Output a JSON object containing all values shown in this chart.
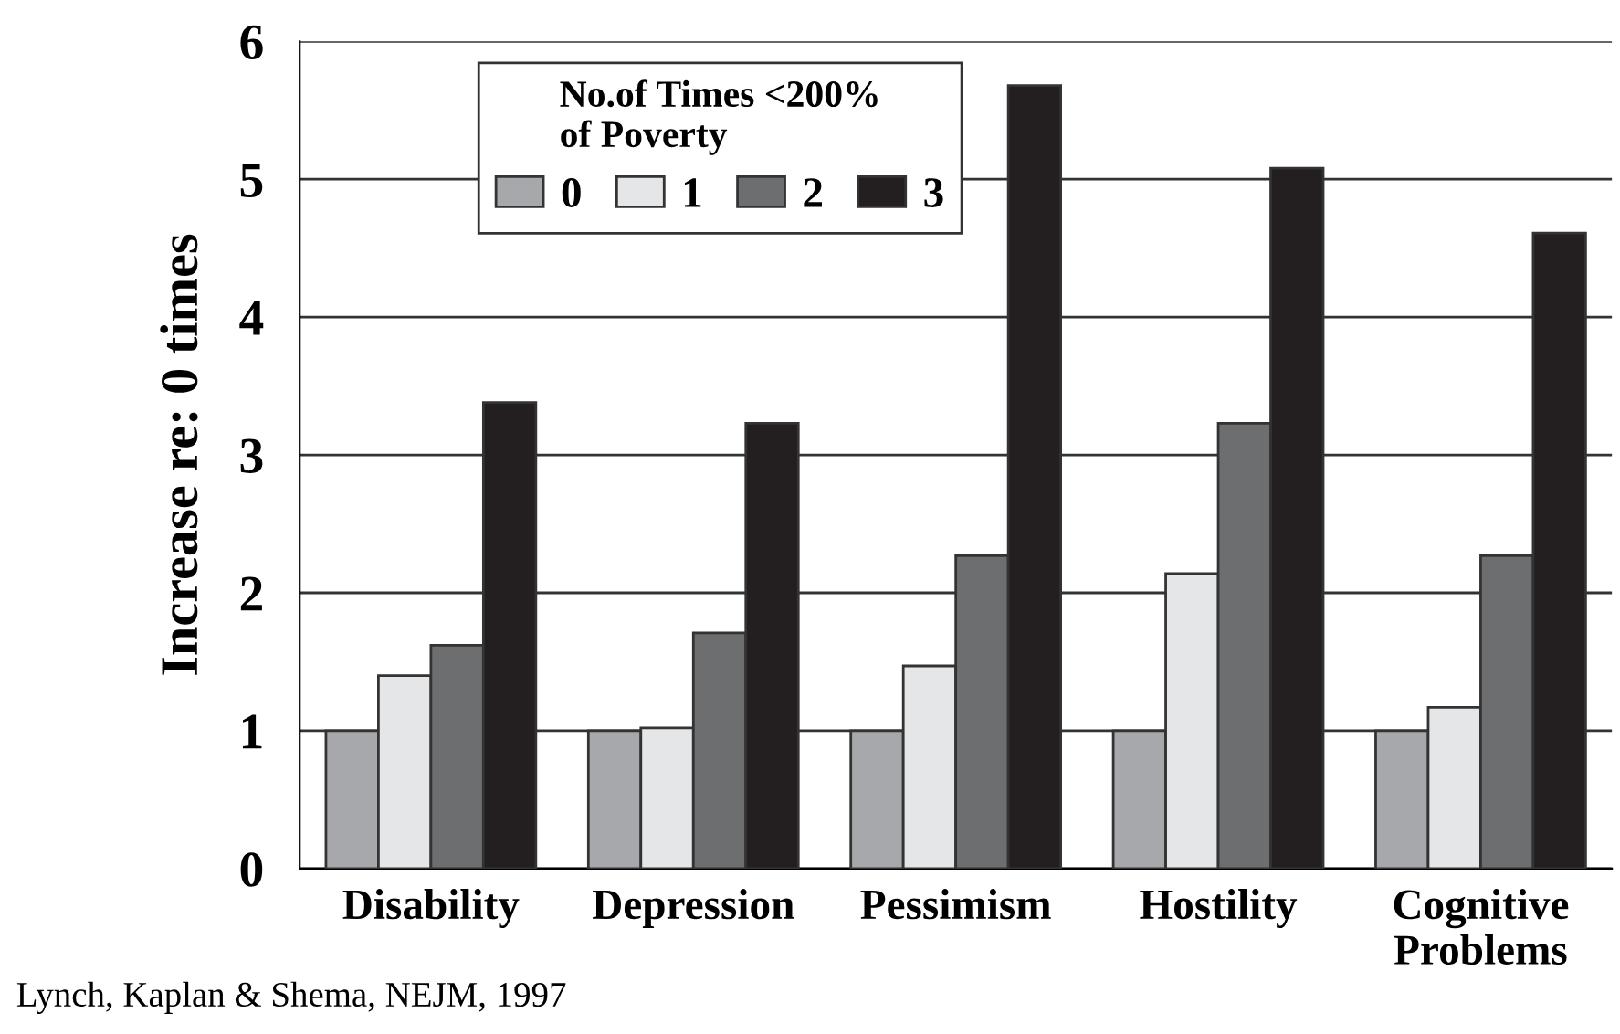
{
  "chart_data": {
    "type": "bar",
    "ylabel": "Increase re: 0 times",
    "legend_title": "No.of Times <200%\nof Poverty",
    "categories": [
      "Disability",
      "Depression",
      "Pessimism",
      "Hostility",
      "Cognitive\nProblems"
    ],
    "series": [
      {
        "name": "0",
        "color": "#a7a8ab",
        "values": [
          1,
          1,
          1,
          1,
          1
        ]
      },
      {
        "name": "1",
        "color": "#e5e6e8",
        "values": [
          1.4,
          1.02,
          1.47,
          2.14,
          1.17
        ]
      },
      {
        "name": "2",
        "color": "#6d6e70",
        "values": [
          1.62,
          1.71,
          2.27,
          3.23,
          2.27
        ]
      },
      {
        "name": "3",
        "color": "#231f20",
        "values": [
          3.38,
          3.23,
          5.68,
          5.08,
          4.61
        ]
      }
    ],
    "ylim": [
      0,
      6
    ],
    "yticks": [
      0,
      1,
      2,
      3,
      4,
      5,
      6
    ],
    "grid": "y",
    "legend": "top left",
    "annotations": [
      "Lynch, Kaplan & Shema, NEJM, 1997"
    ]
  }
}
